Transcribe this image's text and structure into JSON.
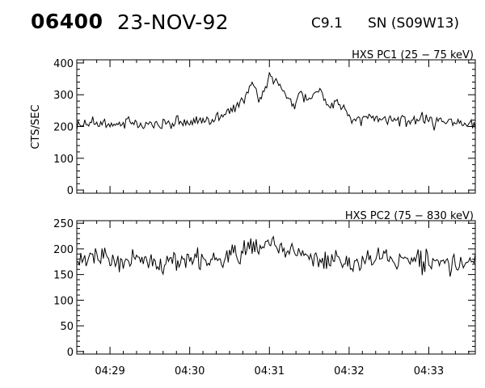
{
  "header": {
    "event_id": "06400",
    "date": "23-NOV-92",
    "goes_class": "C9.1",
    "location": "SN (S09W13)"
  },
  "chart_data": [
    {
      "type": "line",
      "title": "HXS PC1 (25 − 75 keV)",
      "ylabel": "CTS/SEC",
      "ylim": [
        -10,
        410
      ],
      "yticks": [
        0,
        100,
        200,
        300,
        400
      ],
      "xlim": [
        "04:28:35",
        "04:33:35"
      ],
      "xticks": [
        "04:29",
        "04:30",
        "04:31",
        "04:32",
        "04:33"
      ],
      "series": [
        {
          "x": [
            "04:28:35",
            "04:28:47",
            "04:29:00",
            "04:29:12",
            "04:29:25",
            "04:29:37",
            "04:29:50",
            "04:30:02",
            "04:30:15",
            "04:30:27",
            "04:30:40",
            "04:30:47",
            "04:30:52",
            "04:30:57",
            "04:31:02",
            "04:31:07",
            "04:31:12",
            "04:31:17",
            "04:31:22",
            "04:31:30",
            "04:31:37",
            "04:31:45",
            "04:31:52",
            "04:32:05",
            "04:32:17",
            "04:32:30",
            "04:32:42",
            "04:32:55",
            "04:33:07",
            "04:33:20",
            "04:33:35"
          ],
          "values": [
            200,
            215,
            205,
            212,
            200,
            208,
            210,
            215,
            222,
            240,
            275,
            345,
            290,
            325,
            360,
            335,
            305,
            265,
            300,
            290,
            318,
            270,
            275,
            215,
            225,
            225,
            218,
            222,
            210,
            215,
            210
          ]
        }
      ]
    },
    {
      "type": "line",
      "title": "HXS PC2 (75 − 830 keV)",
      "ylabel": "",
      "ylim": [
        -5,
        255
      ],
      "yticks": [
        0,
        50,
        100,
        150,
        200,
        250
      ],
      "xlim": [
        "04:28:35",
        "04:33:35"
      ],
      "xticks": [
        "04:29",
        "04:30",
        "04:31",
        "04:32",
        "04:33"
      ],
      "series": [
        {
          "x": [
            "04:28:35",
            "04:28:50",
            "04:29:05",
            "04:29:20",
            "04:29:35",
            "04:29:50",
            "04:30:05",
            "04:30:20",
            "04:30:35",
            "04:30:45",
            "04:30:55",
            "04:31:03",
            "04:31:10",
            "04:31:20",
            "04:31:35",
            "04:31:50",
            "04:32:05",
            "04:32:20",
            "04:32:35",
            "04:32:50",
            "04:33:05",
            "04:33:20",
            "04:33:35"
          ],
          "values": [
            175,
            185,
            172,
            180,
            170,
            178,
            175,
            180,
            185,
            200,
            205,
            215,
            200,
            190,
            180,
            175,
            178,
            180,
            175,
            180,
            172,
            170,
            175
          ]
        }
      ]
    }
  ]
}
